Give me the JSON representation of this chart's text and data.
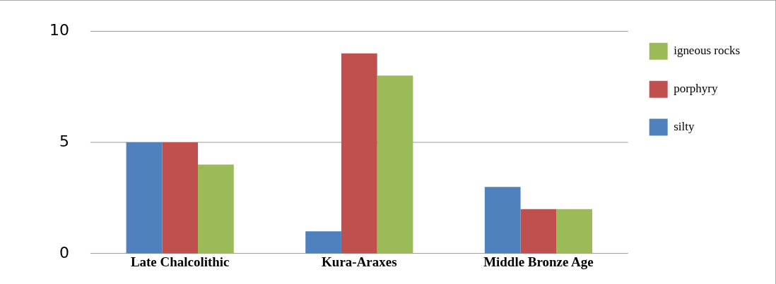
{
  "chart_data": {
    "type": "bar",
    "categories": [
      "Late Chalcolithic",
      "Kura-Araxes",
      "Middle Bronze Age"
    ],
    "series": [
      {
        "name": "silty",
        "color": "#4f81bd",
        "values": [
          5,
          1,
          3
        ]
      },
      {
        "name": "porphyry",
        "color": "#c0504d",
        "values": [
          5,
          9,
          2
        ]
      },
      {
        "name": "igneous rocks",
        "color": "#9bbb59",
        "values": [
          4,
          8,
          2
        ]
      }
    ],
    "ylim": [
      0,
      10
    ],
    "yticks": [
      0,
      5,
      10
    ],
    "grid": "y",
    "legend": "right"
  }
}
